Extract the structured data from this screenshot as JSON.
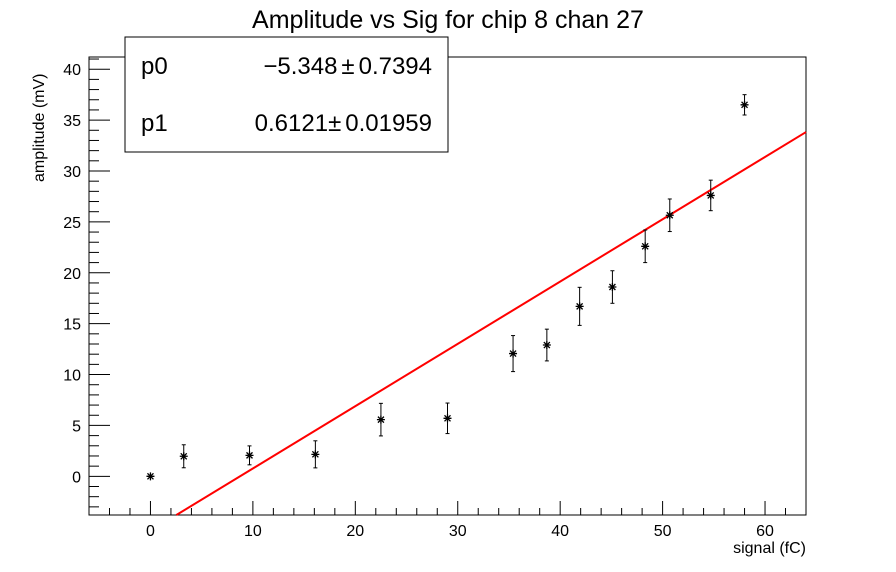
{
  "chart_data": {
    "type": "scatter",
    "title": "Amplitude vs Sig for chip 8 chan 27",
    "xlabel": "signal (fC)",
    "ylabel": "amplitude (mV)",
    "xlim": [
      -6,
      64
    ],
    "ylim": [
      -3.8,
      41.2
    ],
    "x_ticks": [
      0,
      10,
      20,
      30,
      40,
      50,
      60
    ],
    "y_ticks": [
      0,
      5,
      10,
      15,
      20,
      25,
      30,
      35,
      40
    ],
    "grid": false,
    "series": [
      {
        "name": "data",
        "x": [
          0,
          3.25,
          9.67,
          16.1,
          22.5,
          29.0,
          35.4,
          38.7,
          41.9,
          45.1,
          48.3,
          50.7,
          54.7,
          58.0
        ],
        "y": [
          0,
          1.97,
          2.06,
          2.16,
          5.57,
          5.7,
          12.06,
          12.9,
          16.7,
          18.6,
          22.6,
          25.65,
          27.6,
          36.5
        ],
        "yerr": [
          0,
          1.13,
          0.93,
          1.33,
          1.6,
          1.5,
          1.77,
          1.56,
          1.87,
          1.6,
          1.6,
          1.6,
          1.5,
          1.0
        ],
        "color": "#000000"
      }
    ],
    "fit": {
      "type": "linear",
      "p0": -5.348,
      "p1": 0.6121,
      "color": "#ff0000"
    },
    "stats": [
      {
        "name": "p0",
        "value": "−5.348",
        "pm": "±",
        "error": "0.7394"
      },
      {
        "name": "p1",
        "value": "0.6121",
        "pm": "±",
        "error": "0.01959"
      }
    ],
    "legend_position": "top-left"
  }
}
